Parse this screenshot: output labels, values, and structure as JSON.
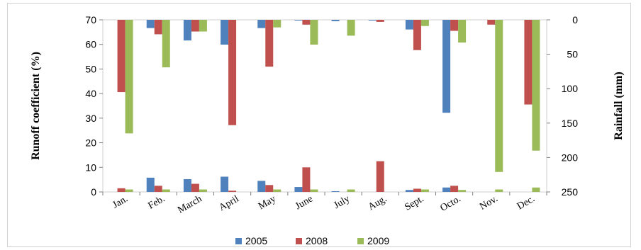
{
  "chart_data": {
    "type": "bar",
    "categories": [
      "Jan.",
      "Feb.",
      "March",
      "April",
      "May",
      "June",
      "July",
      "Aug.",
      "Sept.",
      "Octo.",
      "Nov.",
      "Dec."
    ],
    "left_axis": {
      "label": "Runoff coefficient (%)",
      "ylim": [
        0,
        70
      ],
      "ticks": [
        "0",
        "10",
        "20",
        "30",
        "40",
        "50",
        "60",
        "70"
      ]
    },
    "right_axis": {
      "label": "Rainfall (mm)",
      "ylim": [
        0,
        250
      ],
      "inverted": true,
      "ticks": [
        "0",
        "50",
        "100",
        "150",
        "200",
        "250"
      ]
    },
    "legend": {
      "placement": "bottom"
    },
    "series": [
      {
        "name": "2005",
        "color": "#4f81bd",
        "runoff": [
          0,
          5.8,
          5.2,
          6.2,
          4.5,
          2.0,
          0.3,
          0,
          0.8,
          1.8,
          0,
          0
        ],
        "rainfall": [
          0,
          12,
          30,
          36,
          12,
          1,
          2,
          1,
          14,
          135,
          0,
          0
        ]
      },
      {
        "name": "2008",
        "color": "#c0504d",
        "runoff": [
          1.5,
          2.5,
          3.3,
          0.5,
          2.8,
          10.0,
          0,
          12.5,
          1.3,
          2.5,
          0,
          0
        ],
        "rainfall": [
          105,
          21,
          17,
          153,
          68,
          7,
          0,
          3,
          44,
          16,
          7,
          123
        ]
      },
      {
        "name": "2009",
        "color": "#9bbb59",
        "runoff": [
          1.0,
          1.0,
          1.0,
          0,
          1.0,
          1.0,
          1.0,
          0,
          1.0,
          0.8,
          1.0,
          1.8
        ],
        "rainfall": [
          165,
          69,
          17,
          0,
          11,
          36,
          23,
          0,
          9,
          33,
          221,
          190
        ]
      }
    ]
  }
}
